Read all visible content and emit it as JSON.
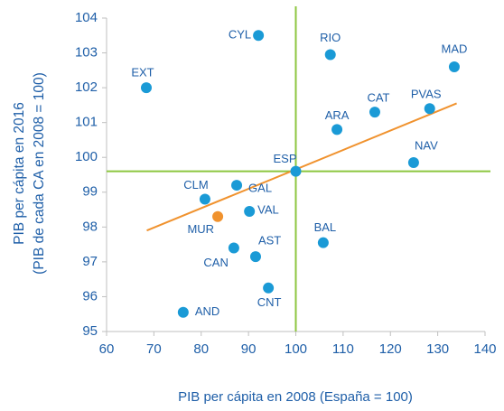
{
  "chart_data": {
    "type": "scatter",
    "x_label": "PIB per cápita en 2008 (España = 100)",
    "y_label": [
      "PIB per cápita en 2016",
      "(PIB de cada CA en 2008 = 100)"
    ],
    "labels": [
      "CYL",
      "RIO",
      "MAD",
      "EXT",
      "CAT",
      "PVAS",
      "ARA",
      "NAV",
      "ESP",
      "CLM",
      "GAL",
      "VAL",
      "MUR",
      "BAL",
      "CAN",
      "AST",
      "CNT",
      "AND"
    ],
    "x": [
      92.1,
      107.3,
      133.5,
      68.4,
      116.7,
      128.3,
      108.7,
      124.9,
      100,
      80.8,
      87.5,
      90.2,
      83.5,
      105.8,
      86.9,
      91.5,
      94.2,
      76.2
    ],
    "y": [
      103.5,
      102.95,
      102.6,
      102.0,
      101.3,
      101.4,
      100.8,
      99.85,
      99.6,
      98.8,
      99.2,
      98.45,
      98.3,
      97.55,
      97.4,
      97.15,
      96.25,
      95.55
    ],
    "colors": [
      "#1a9ad6",
      "#1a9ad6",
      "#1a9ad6",
      "#1a9ad6",
      "#1a9ad6",
      "#1a9ad6",
      "#1a9ad6",
      "#1a9ad6",
      "#1a9ad6",
      "#1a9ad6",
      "#1a9ad6",
      "#1a9ad6",
      "#f0922e",
      "#1a9ad6",
      "#1a9ad6",
      "#1a9ad6",
      "#1a9ad6",
      "#1a9ad6"
    ],
    "trendline": {
      "x": [
        68.5,
        134
      ],
      "y": [
        97.9,
        101.55
      ],
      "color": "#f0922e"
    },
    "reference_lines": {
      "x": 100,
      "y": 99.6,
      "color": "#8dc63f"
    },
    "xlim": [
      60,
      140
    ],
    "ylim": [
      95,
      104
    ],
    "xticks": [
      60,
      70,
      80,
      90,
      100,
      110,
      120,
      130,
      140
    ],
    "yticks": [
      95,
      96,
      97,
      98,
      99,
      100,
      101,
      102,
      103,
      104
    ]
  }
}
